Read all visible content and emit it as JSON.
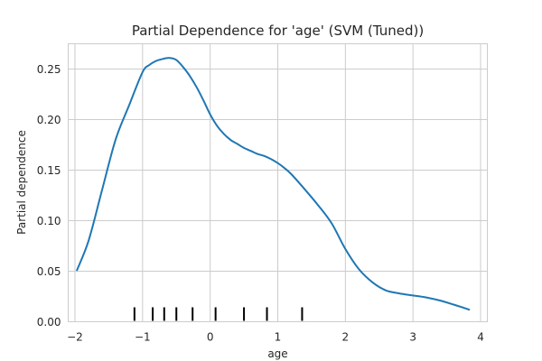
{
  "chart_data": {
    "type": "line",
    "title": "Partial Dependence for 'age' (SVM (Tuned))",
    "xlabel": "age",
    "ylabel": "Partial dependence",
    "xlim": [
      -2.1,
      4.1
    ],
    "ylim": [
      0.0,
      0.275
    ],
    "xticks": [
      -2,
      -1,
      0,
      1,
      2,
      3,
      4
    ],
    "xtick_labels": [
      "−2",
      "−1",
      "0",
      "1",
      "2",
      "3",
      "4"
    ],
    "yticks": [
      0.0,
      0.05,
      0.1,
      0.15,
      0.2,
      0.25
    ],
    "ytick_labels": [
      "0.00",
      "0.05",
      "0.10",
      "0.15",
      "0.20",
      "0.25"
    ],
    "grid": true,
    "series": [
      {
        "color": "#1f77b4",
        "x": [
          -1.97,
          -1.8,
          -1.6,
          -1.4,
          -1.2,
          -1.0,
          -0.9,
          -0.8,
          -0.7,
          -0.6,
          -0.5,
          -0.4,
          -0.3,
          -0.2,
          -0.1,
          0.0,
          0.1,
          0.2,
          0.3,
          0.4,
          0.5,
          0.6,
          0.7,
          0.8,
          0.9,
          1.0,
          1.1,
          1.2,
          1.4,
          1.6,
          1.8,
          2.0,
          2.2,
          2.4,
          2.6,
          2.8,
          3.0,
          3.2,
          3.4,
          3.6,
          3.83
        ],
        "y": [
          0.051,
          0.08,
          0.13,
          0.18,
          0.214,
          0.247,
          0.254,
          0.258,
          0.26,
          0.261,
          0.259,
          0.252,
          0.243,
          0.232,
          0.219,
          0.205,
          0.194,
          0.186,
          0.18,
          0.176,
          0.172,
          0.169,
          0.166,
          0.164,
          0.161,
          0.157,
          0.152,
          0.146,
          0.131,
          0.115,
          0.097,
          0.072,
          0.052,
          0.039,
          0.031,
          0.028,
          0.026,
          0.024,
          0.021,
          0.017,
          0.012
        ]
      }
    ],
    "rug_x": [
      -1.12,
      -0.85,
      -0.68,
      -0.5,
      -0.26,
      0.08,
      0.5,
      0.84,
      1.36
    ]
  }
}
